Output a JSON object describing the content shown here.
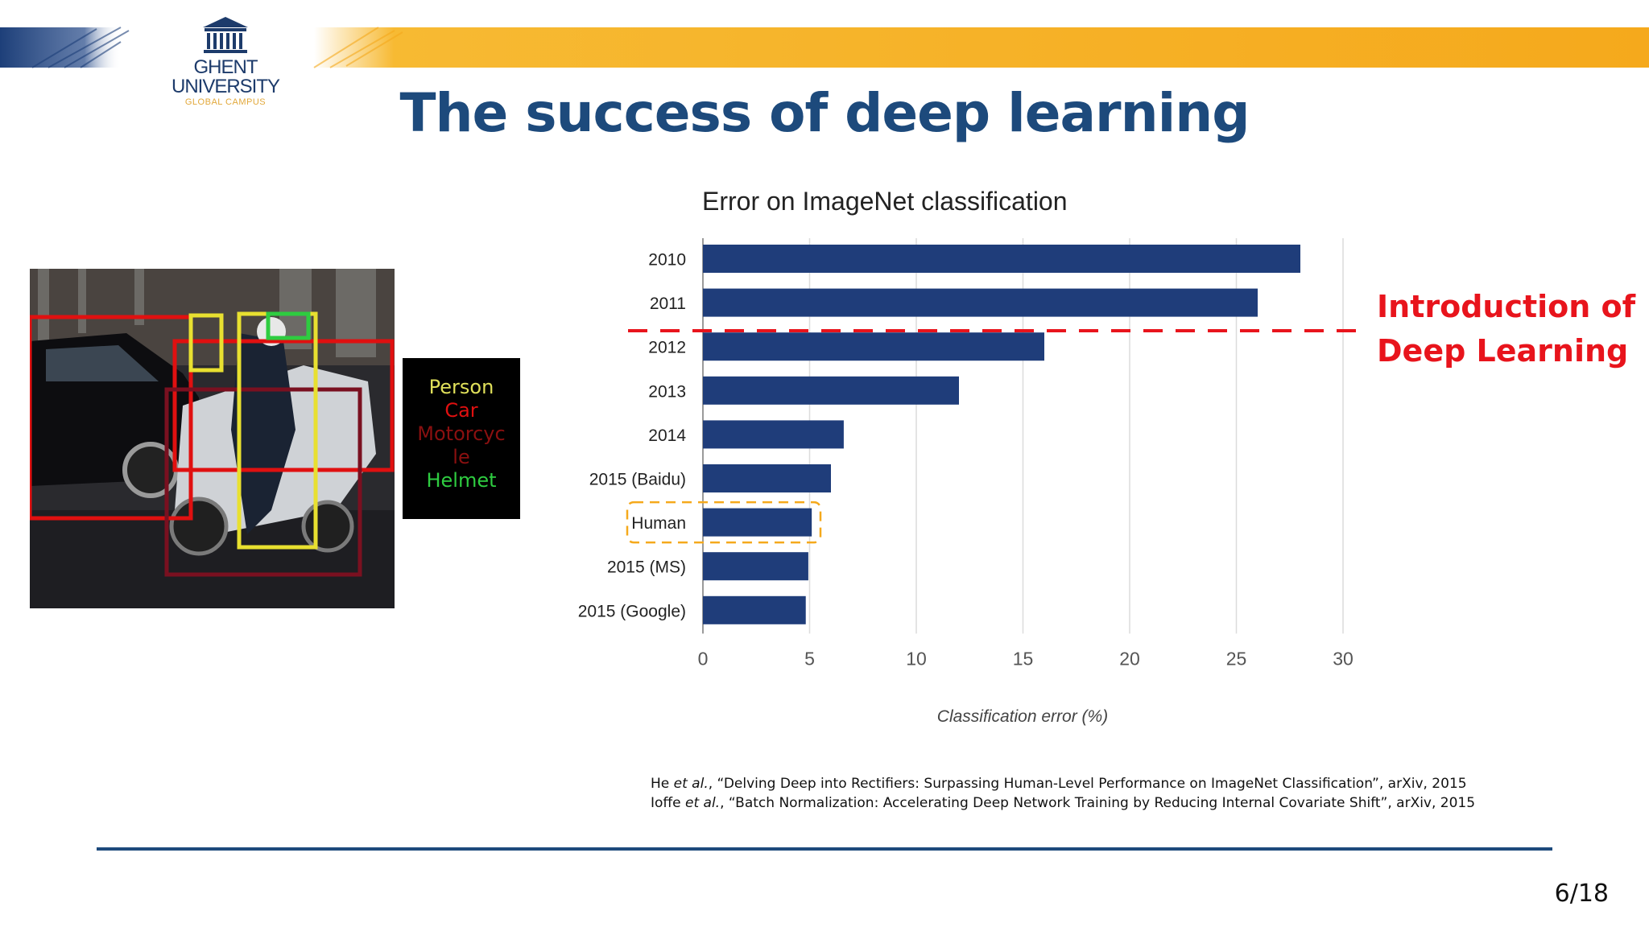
{
  "header": {
    "logo": {
      "line1": "GHENT",
      "line2": "UNIVERSITY",
      "line3": "GLOBAL CAMPUS"
    },
    "accent_colors": {
      "blue": "#1d3f79",
      "gold": "#f5a91c"
    }
  },
  "slide": {
    "title": "The success of deep learning",
    "page": "6/18"
  },
  "figure": {
    "legend": [
      {
        "label": "Person",
        "color": "#e0e05a"
      },
      {
        "label": "Car",
        "color": "#e01010"
      },
      {
        "label": "Motorcyc",
        "color": "#8a1010"
      },
      {
        "label": "le",
        "color": "#8a1010"
      },
      {
        "label": "Helmet",
        "color": "#2ecc40"
      }
    ]
  },
  "chart_data": {
    "type": "bar",
    "orientation": "horizontal",
    "title": "Error on ImageNet classification",
    "xlabel": "Classification error (%)",
    "ylabel": "",
    "categories": [
      "2010",
      "2011",
      "2012",
      "2013",
      "2014",
      "2015 (Baidu)",
      "Human",
      "2015 (MS)",
      "2015 (Google)"
    ],
    "values": [
      28.0,
      26.0,
      16.0,
      12.0,
      6.6,
      6.0,
      5.1,
      4.94,
      4.82
    ],
    "xlim": [
      0,
      30
    ],
    "xticks": [
      0,
      5,
      10,
      15,
      20,
      25,
      30
    ],
    "grid": true,
    "bar_color": "#1f3d7a",
    "highlighted_category": "Human",
    "highlight_color": "#f5a91c"
  },
  "annotation": {
    "line1": "Introduction of",
    "line2": "Deep Learning",
    "color": "#e8141c"
  },
  "references": [
    {
      "author": "He",
      "etal": "et al.",
      "text": ", “Delving Deep into Rectifiers: Surpassing Human-Level Performance on ImageNet Classification”, arXiv, 2015"
    },
    {
      "author": "Ioffe",
      "etal": "et al.",
      "text": ", “Batch Normalization: Accelerating Deep Network Training by Reducing Internal Covariate Shift”, arXiv, 2015"
    }
  ]
}
